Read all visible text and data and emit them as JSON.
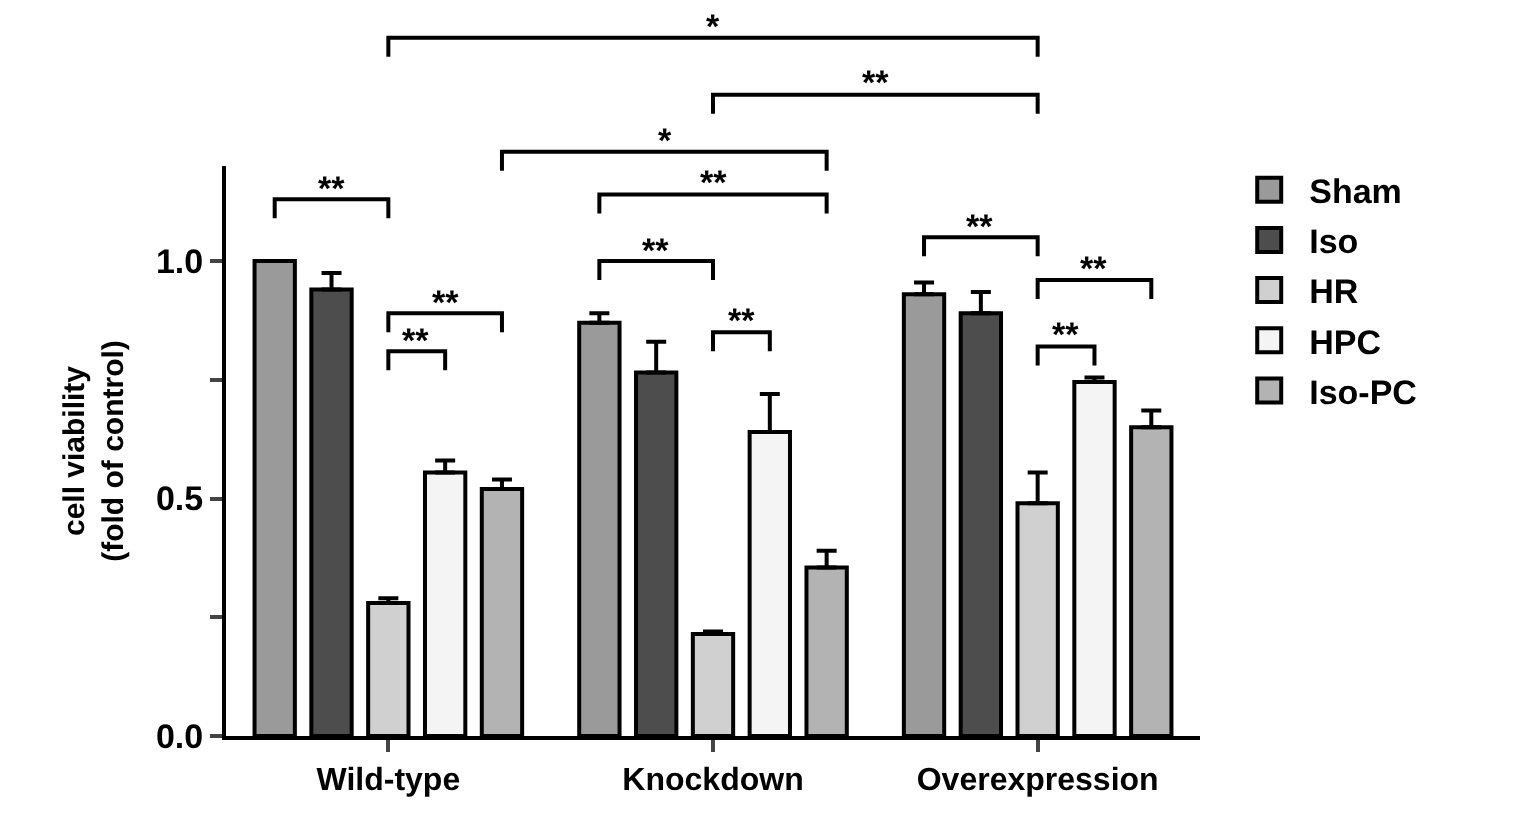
{
  "chart_data": {
    "type": "bar",
    "categories": [
      "Wild-type",
      "Knockdown",
      "Overexpression"
    ],
    "ylabel": "cell viability\n(fold of control)",
    "ylim": [
      0,
      1.2
    ],
    "yticks": [
      {
        "value": 0,
        "label": "0.0"
      },
      {
        "value": 0.25,
        "label": null
      },
      {
        "value": 0.5,
        "label": "0.5"
      },
      {
        "value": 0.75,
        "label": null
      },
      {
        "value": 1,
        "label": "1.0"
      }
    ],
    "legend": "right",
    "grid": false,
    "series": [
      {
        "name": "Sham",
        "color": "#9a9a9a",
        "values": [
          1.0,
          0.87,
          0.93
        ],
        "errors": [
          null,
          [
            0.87,
            0.89
          ],
          [
            0.93,
            0.955
          ]
        ]
      },
      {
        "name": "Iso",
        "color": "#4d4d4d",
        "values": [
          0.94,
          0.765,
          0.89
        ],
        "errors": [
          [
            0.94,
            0.975
          ],
          [
            0.765,
            0.83
          ],
          [
            0.89,
            0.935
          ]
        ]
      },
      {
        "name": "HR",
        "color": "#d0d0d0",
        "values": [
          0.28,
          0.215,
          0.49
        ],
        "errors": [
          [
            0.28,
            0.29
          ],
          [
            0.215,
            0.22
          ],
          [
            0.49,
            0.555
          ]
        ]
      },
      {
        "name": "HPC",
        "color": "#f4f4f4",
        "values": [
          0.555,
          0.64,
          0.745
        ],
        "errors": [
          [
            0.555,
            0.58
          ],
          [
            0.64,
            0.72
          ],
          [
            0.745,
            0.755
          ]
        ]
      },
      {
        "name": "Iso-PC",
        "color": "#b3b3b3",
        "values": [
          0.52,
          0.355,
          0.65
        ],
        "errors": [
          [
            0.52,
            0.54
          ],
          [
            0.355,
            0.39
          ],
          [
            0.65,
            0.685
          ]
        ]
      }
    ],
    "annotations": [
      "**",
      "**",
      "**",
      "**",
      "**",
      "**",
      "**",
      "**",
      "**",
      "*",
      "**",
      "*"
    ]
  }
}
